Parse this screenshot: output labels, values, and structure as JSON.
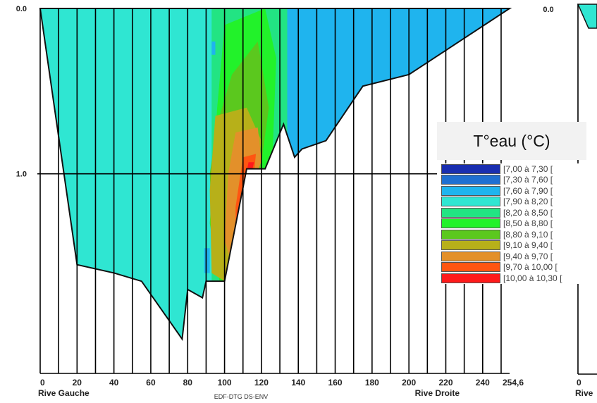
{
  "chart_data": {
    "type": "heatmap",
    "subtitle": "EDF-DTG DS-ENV",
    "y_ticks": [
      "0.0",
      "1.0"
    ],
    "x_ticks": [
      "0",
      "20",
      "40",
      "60",
      "80",
      "100",
      "120",
      "140",
      "160",
      "180",
      "200",
      "220",
      "240",
      "254,6"
    ],
    "x_range": [
      0,
      254.6
    ],
    "y_range": [
      0,
      2.0
    ],
    "bank_left": "Rive Gauche",
    "bank_right": "Rive Droite",
    "legend_title": "T°eau (°C)",
    "legend": [
      {
        "label": "[7,00 à 7,30 [",
        "color": "#1a2fb0"
      },
      {
        "label": "[7,30 à 7,60 [",
        "color": "#1f6fd1"
      },
      {
        "label": "[7,60 à 7,90 [",
        "color": "#1fb4ee"
      },
      {
        "label": "[7,90 à 8,20 [",
        "color": "#2fe6d2"
      },
      {
        "label": "[8,20 à 8,50 [",
        "color": "#22e483"
      },
      {
        "label": "[8,50 à 8,80 [",
        "color": "#22f22a"
      },
      {
        "label": "[8,80 à 9,10 [",
        "color": "#5bc81e"
      },
      {
        "label": "[9,10 à 9,40 [",
        "color": "#b7b019"
      },
      {
        "label": "[9,40 à 9,70 [",
        "color": "#e3902a"
      },
      {
        "label": "[9,70 à 10,00 [",
        "color": "#ff5511"
      },
      {
        "label": "[10,00 à 10,30 [",
        "color": "#ff1a1a"
      }
    ],
    "cross_section_depth": [
      {
        "x": 0,
        "y": 0.0
      },
      {
        "x": 20,
        "y": 1.55
      },
      {
        "x": 40,
        "y": 1.6
      },
      {
        "x": 55,
        "y": 1.65
      },
      {
        "x": 77,
        "y": 2.0
      },
      {
        "x": 80,
        "y": 1.7
      },
      {
        "x": 88,
        "y": 1.75
      },
      {
        "x": 90,
        "y": 1.65
      },
      {
        "x": 100,
        "y": 1.65
      },
      {
        "x": 112,
        "y": 0.97
      },
      {
        "x": 122,
        "y": 0.97
      },
      {
        "x": 132,
        "y": 0.7
      },
      {
        "x": 138,
        "y": 0.9
      },
      {
        "x": 142,
        "y": 0.85
      },
      {
        "x": 155,
        "y": 0.8
      },
      {
        "x": 175,
        "y": 0.47
      },
      {
        "x": 200,
        "y": 0.4
      },
      {
        "x": 254.6,
        "y": 0.0
      }
    ]
  }
}
